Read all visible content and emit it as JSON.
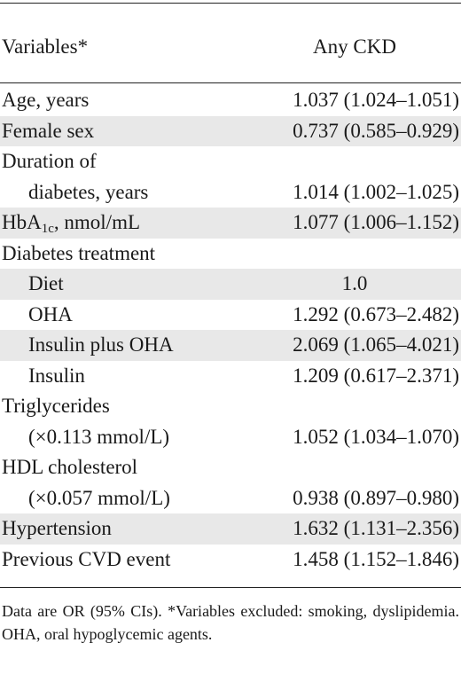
{
  "header": {
    "variables": "Variables*",
    "column": "Any CKD"
  },
  "rows": [
    {
      "label": "Age, years",
      "value": "1.037 (1.024–1.051)"
    },
    {
      "label": "Female sex",
      "value": "0.737 (0.585–0.929)"
    },
    {
      "label": "Duration of",
      "value": ""
    },
    {
      "label": "diabetes, years",
      "value": "1.014 (1.002–1.025)"
    },
    {
      "label_prefix": "HbA",
      "label_sub": "1c",
      "label_suffix": ", nmol/mL",
      "value": "1.077 (1.006–1.152)"
    },
    {
      "label": "Diabetes treatment",
      "value": ""
    },
    {
      "label": "Diet",
      "value": "1.0"
    },
    {
      "label": "OHA",
      "value": "1.292 (0.673–2.482)"
    },
    {
      "label": "Insulin plus OHA",
      "value": "2.069 (1.065–4.021)"
    },
    {
      "label": "Insulin",
      "value": "1.209 (0.617–2.371)"
    },
    {
      "label": "Triglycerides",
      "value": ""
    },
    {
      "label": "(×0.113 mmol/L)",
      "value": "1.052 (1.034–1.070)"
    },
    {
      "label": "HDL cholesterol",
      "value": ""
    },
    {
      "label": "(×0.057 mmol/L)",
      "value": "0.938 (0.897–0.980)"
    },
    {
      "label": "Hypertension",
      "value": "1.632 (1.131–2.356)"
    },
    {
      "label": "Previous CVD event",
      "value": "1.458 (1.152–1.846)"
    }
  ],
  "footnote": "Data are OR (95% CIs). *Variables excluded: smoking, dyslipidemia. OHA, oral hypoglycemic agents."
}
